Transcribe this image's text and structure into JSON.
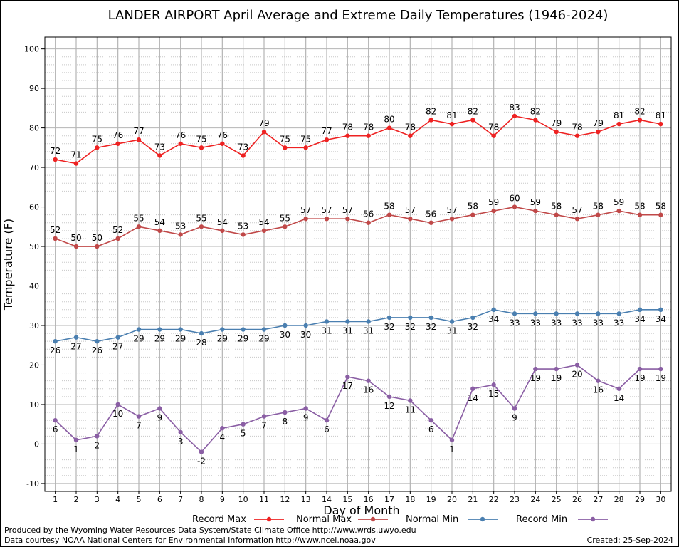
{
  "chart_data": {
    "type": "line",
    "title": "LANDER AIRPORT April Average and Extreme Daily Temperatures (1946-2024)",
    "xlabel": "Day of Month",
    "ylabel": "Temperature (F)",
    "xlim": [
      0.5,
      30.5
    ],
    "ylim": [
      -12,
      103
    ],
    "yticks": [
      -10,
      0,
      10,
      20,
      30,
      40,
      50,
      60,
      70,
      80,
      90,
      100
    ],
    "x": [
      1,
      2,
      3,
      4,
      5,
      6,
      7,
      8,
      9,
      10,
      11,
      12,
      13,
      14,
      15,
      16,
      17,
      18,
      19,
      20,
      21,
      22,
      23,
      24,
      25,
      26,
      27,
      28,
      29,
      30
    ],
    "grid": true,
    "legend_position": "bottom",
    "series": [
      {
        "name": "Record Max",
        "color": "#ee2222",
        "label_position": "above",
        "values": [
          72,
          71,
          75,
          76,
          77,
          73,
          76,
          75,
          76,
          73,
          79,
          75,
          75,
          77,
          78,
          78,
          80,
          78,
          82,
          81,
          82,
          78,
          83,
          82,
          79,
          78,
          79,
          81,
          82,
          81
        ]
      },
      {
        "name": "Normal Max",
        "color": "#c04848",
        "label_position": "above",
        "values": [
          52,
          50,
          50,
          52,
          55,
          54,
          53,
          55,
          54,
          53,
          54,
          55,
          57,
          57,
          57,
          56,
          58,
          57,
          56,
          57,
          58,
          59,
          60,
          59,
          58,
          57,
          58,
          59,
          58,
          58
        ]
      },
      {
        "name": "Normal Min",
        "color": "#4a7fb0",
        "label_position": "below",
        "values": [
          26,
          27,
          26,
          27,
          29,
          29,
          29,
          28,
          29,
          29,
          29,
          30,
          30,
          31,
          31,
          31,
          32,
          32,
          32,
          31,
          32,
          34,
          33,
          33,
          33,
          33,
          33,
          33,
          34,
          34
        ]
      },
      {
        "name": "Record Min",
        "color": "#8a5ea4",
        "label_position": "below",
        "values": [
          6,
          1,
          2,
          10,
          7,
          9,
          3,
          -2,
          4,
          5,
          7,
          8,
          9,
          6,
          17,
          16,
          12,
          11,
          6,
          1,
          14,
          15,
          9,
          19,
          19,
          20,
          16,
          14,
          19,
          19
        ]
      }
    ]
  },
  "footer": {
    "credit_line_1": "Produced by the Wyoming Water Resources Data System/State Climate Office http://www.wrds.uwyo.edu",
    "credit_line_2": "Data courtesy NOAA National Centers for Environmental Information http://www.ncei.noaa.gov",
    "created": "Created:  25-Sep-2024"
  }
}
